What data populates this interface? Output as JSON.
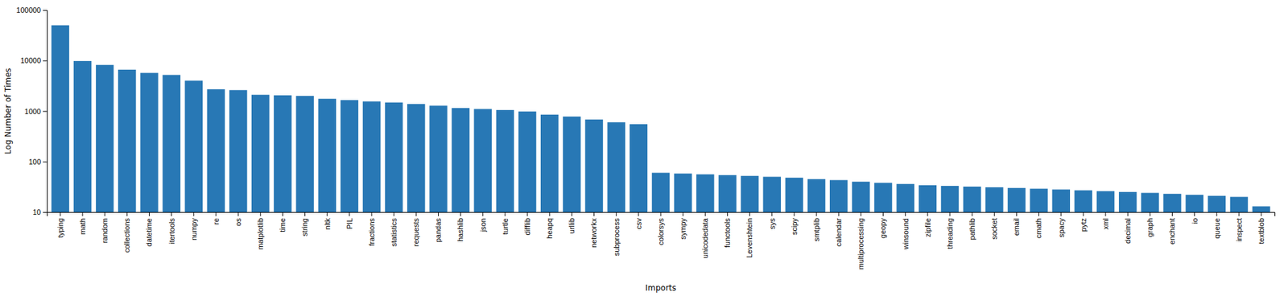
{
  "chart_data": {
    "type": "bar",
    "categories": [
      "typing",
      "math",
      "random",
      "collections",
      "datetime",
      "itertools",
      "numpy",
      "re",
      "os",
      "matplotlib",
      "time",
      "string",
      "nltk",
      "PIL",
      "fractions",
      "statistics",
      "requests",
      "pandas",
      "hashlib",
      "json",
      "turtle",
      "difflib",
      "heapq",
      "urllib",
      "networkx",
      "subprocess",
      "csv",
      "colorsys",
      "sympy",
      "unicodedata",
      "functools",
      "Levenshtein",
      "sys",
      "scipy",
      "smtplib",
      "calendar",
      "multiprocessing",
      "geopy",
      "winsound",
      "zipfile",
      "threading",
      "pathlib",
      "socket",
      "email",
      "cmath",
      "spacy",
      "pytz",
      "xml",
      "decimal",
      "graph",
      "enchant",
      "io",
      "queue",
      "inspect",
      "textblob"
    ],
    "values": [
      50000,
      9800,
      8200,
      6600,
      5700,
      5200,
      4000,
      2700,
      2600,
      2100,
      2050,
      2000,
      1750,
      1650,
      1550,
      1480,
      1380,
      1280,
      1150,
      1100,
      1050,
      980,
      850,
      780,
      680,
      600,
      550,
      60,
      58,
      56,
      54,
      52,
      50,
      48,
      45,
      43,
      40,
      38,
      36,
      34,
      33,
      32,
      31,
      30,
      29,
      28,
      27,
      26,
      25,
      24,
      23,
      22,
      21,
      20,
      13
    ],
    "color": "#2878b5",
    "xlabel": "Imports",
    "ylabel": "Log Number of Times",
    "log": "y",
    "ylim": [
      10,
      100000
    ],
    "yticks": [
      10,
      100,
      1000,
      10000,
      100000
    ],
    "grid": false
  }
}
